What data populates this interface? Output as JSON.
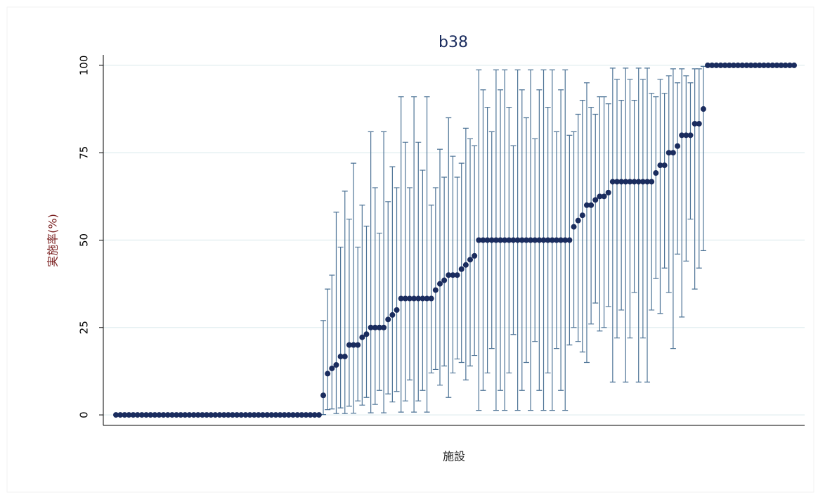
{
  "chart_data": {
    "type": "scatter_errorbar",
    "title": "b38",
    "xlabel": "施設",
    "ylabel": "実施率(%)",
    "ylim": [
      -3,
      103
    ],
    "yticks": [
      0,
      25,
      50,
      75,
      100
    ],
    "grid": true,
    "color": "#1a2c5e",
    "error_color": "#4d7396",
    "title_color": "#1a2c5e",
    "ylabel_color": "#7a1f1f",
    "values": [
      0,
      0,
      0,
      0,
      0,
      0,
      0,
      0,
      0,
      0,
      0,
      0,
      0,
      0,
      0,
      0,
      0,
      0,
      0,
      0,
      0,
      0,
      0,
      0,
      0,
      0,
      0,
      0,
      0,
      0,
      0,
      0,
      0,
      0,
      0,
      0,
      0,
      0,
      0,
      0,
      0,
      0,
      0,
      0,
      0,
      0,
      0,
      0,
      5.6,
      11.8,
      13.3,
      14.3,
      16.7,
      16.7,
      20,
      20,
      20,
      22.2,
      23.1,
      25,
      25,
      25,
      25,
      27.3,
      28.6,
      30,
      33.3,
      33.3,
      33.3,
      33.3,
      33.3,
      33.3,
      33.3,
      33.3,
      35.7,
      37.5,
      38.5,
      40,
      40,
      40,
      41.7,
      42.9,
      44.4,
      45.5,
      50,
      50,
      50,
      50,
      50,
      50,
      50,
      50,
      50,
      50,
      50,
      50,
      50,
      50,
      50,
      50,
      50,
      50,
      50,
      50,
      50,
      50,
      53.8,
      55.6,
      57.1,
      60,
      60,
      61.5,
      62.5,
      62.5,
      63.6,
      66.7,
      66.7,
      66.7,
      66.7,
      66.7,
      66.7,
      66.7,
      66.7,
      66.7,
      66.7,
      69.2,
      71.4,
      71.4,
      75,
      75,
      76.9,
      80,
      80,
      80,
      83.3,
      83.3,
      87.5,
      100,
      100,
      100,
      100,
      100,
      100,
      100,
      100,
      100,
      100,
      100,
      100,
      100,
      100,
      100,
      100,
      100,
      100,
      100,
      100,
      100
    ],
    "lower": [
      null,
      null,
      null,
      null,
      null,
      null,
      null,
      null,
      null,
      null,
      null,
      null,
      null,
      null,
      null,
      null,
      null,
      null,
      null,
      null,
      null,
      null,
      null,
      null,
      null,
      null,
      null,
      null,
      null,
      null,
      null,
      null,
      null,
      null,
      null,
      null,
      null,
      null,
      null,
      null,
      null,
      null,
      null,
      null,
      null,
      null,
      null,
      null,
      0.1,
      1.5,
      1.7,
      0.4,
      2,
      0.4,
      2.5,
      0.5,
      4,
      2.8,
      5,
      0.6,
      3,
      7,
      0.6,
      6,
      3.7,
      6.7,
      0.8,
      4,
      10,
      0.8,
      4,
      7,
      0.8,
      12,
      13,
      8.5,
      14,
      5,
      12,
      16,
      15,
      10,
      14,
      17,
      1.3,
      7,
      12,
      19,
      1.3,
      7,
      1.3,
      12,
      23,
      1.3,
      7,
      15,
      1.3,
      21,
      7,
      1.3,
      12,
      1.3,
      19,
      7,
      1.3,
      20,
      25,
      21,
      18,
      15,
      26,
      32,
      24,
      25,
      31,
      9.4,
      22,
      30,
      9.4,
      22,
      35,
      9.4,
      22,
      9.4,
      30,
      39,
      29,
      42,
      35,
      19,
      46,
      28,
      44,
      56,
      36,
      42,
      47,
      null,
      null,
      null,
      null,
      null,
      null,
      null,
      null,
      null,
      null,
      null,
      null,
      null,
      null,
      null,
      null,
      null,
      null,
      null,
      null,
      null
    ],
    "upper": [
      null,
      null,
      null,
      null,
      null,
      null,
      null,
      null,
      null,
      null,
      null,
      null,
      null,
      null,
      null,
      null,
      null,
      null,
      null,
      null,
      null,
      null,
      null,
      null,
      null,
      null,
      null,
      null,
      null,
      null,
      null,
      null,
      null,
      null,
      null,
      null,
      null,
      null,
      null,
      null,
      null,
      null,
      null,
      null,
      null,
      null,
      null,
      null,
      27,
      36,
      40,
      58,
      48,
      64,
      56,
      72,
      48,
      60,
      54,
      81,
      65,
      52,
      81,
      61,
      71,
      65,
      91,
      78,
      65,
      91,
      78,
      70,
      91,
      60,
      65,
      76,
      68,
      85,
      74,
      68,
      72,
      82,
      79,
      77,
      98.7,
      93,
      88,
      81,
      98.7,
      93,
      98.7,
      88,
      77,
      98.7,
      93,
      85,
      98.7,
      79,
      93,
      98.7,
      88,
      98.7,
      81,
      93,
      98.7,
      80,
      81,
      86,
      90,
      95,
      88,
      86,
      91,
      91,
      89,
      99.2,
      96,
      90,
      99.2,
      96,
      90,
      99.2,
      96,
      99.2,
      92,
      91,
      96,
      92,
      97,
      99,
      95,
      99,
      97,
      95,
      99,
      99,
      99.7,
      null,
      null,
      null,
      null,
      null,
      null,
      null,
      null,
      null,
      null,
      null,
      null,
      null,
      null,
      null,
      null,
      null,
      null,
      null,
      null,
      null
    ]
  }
}
